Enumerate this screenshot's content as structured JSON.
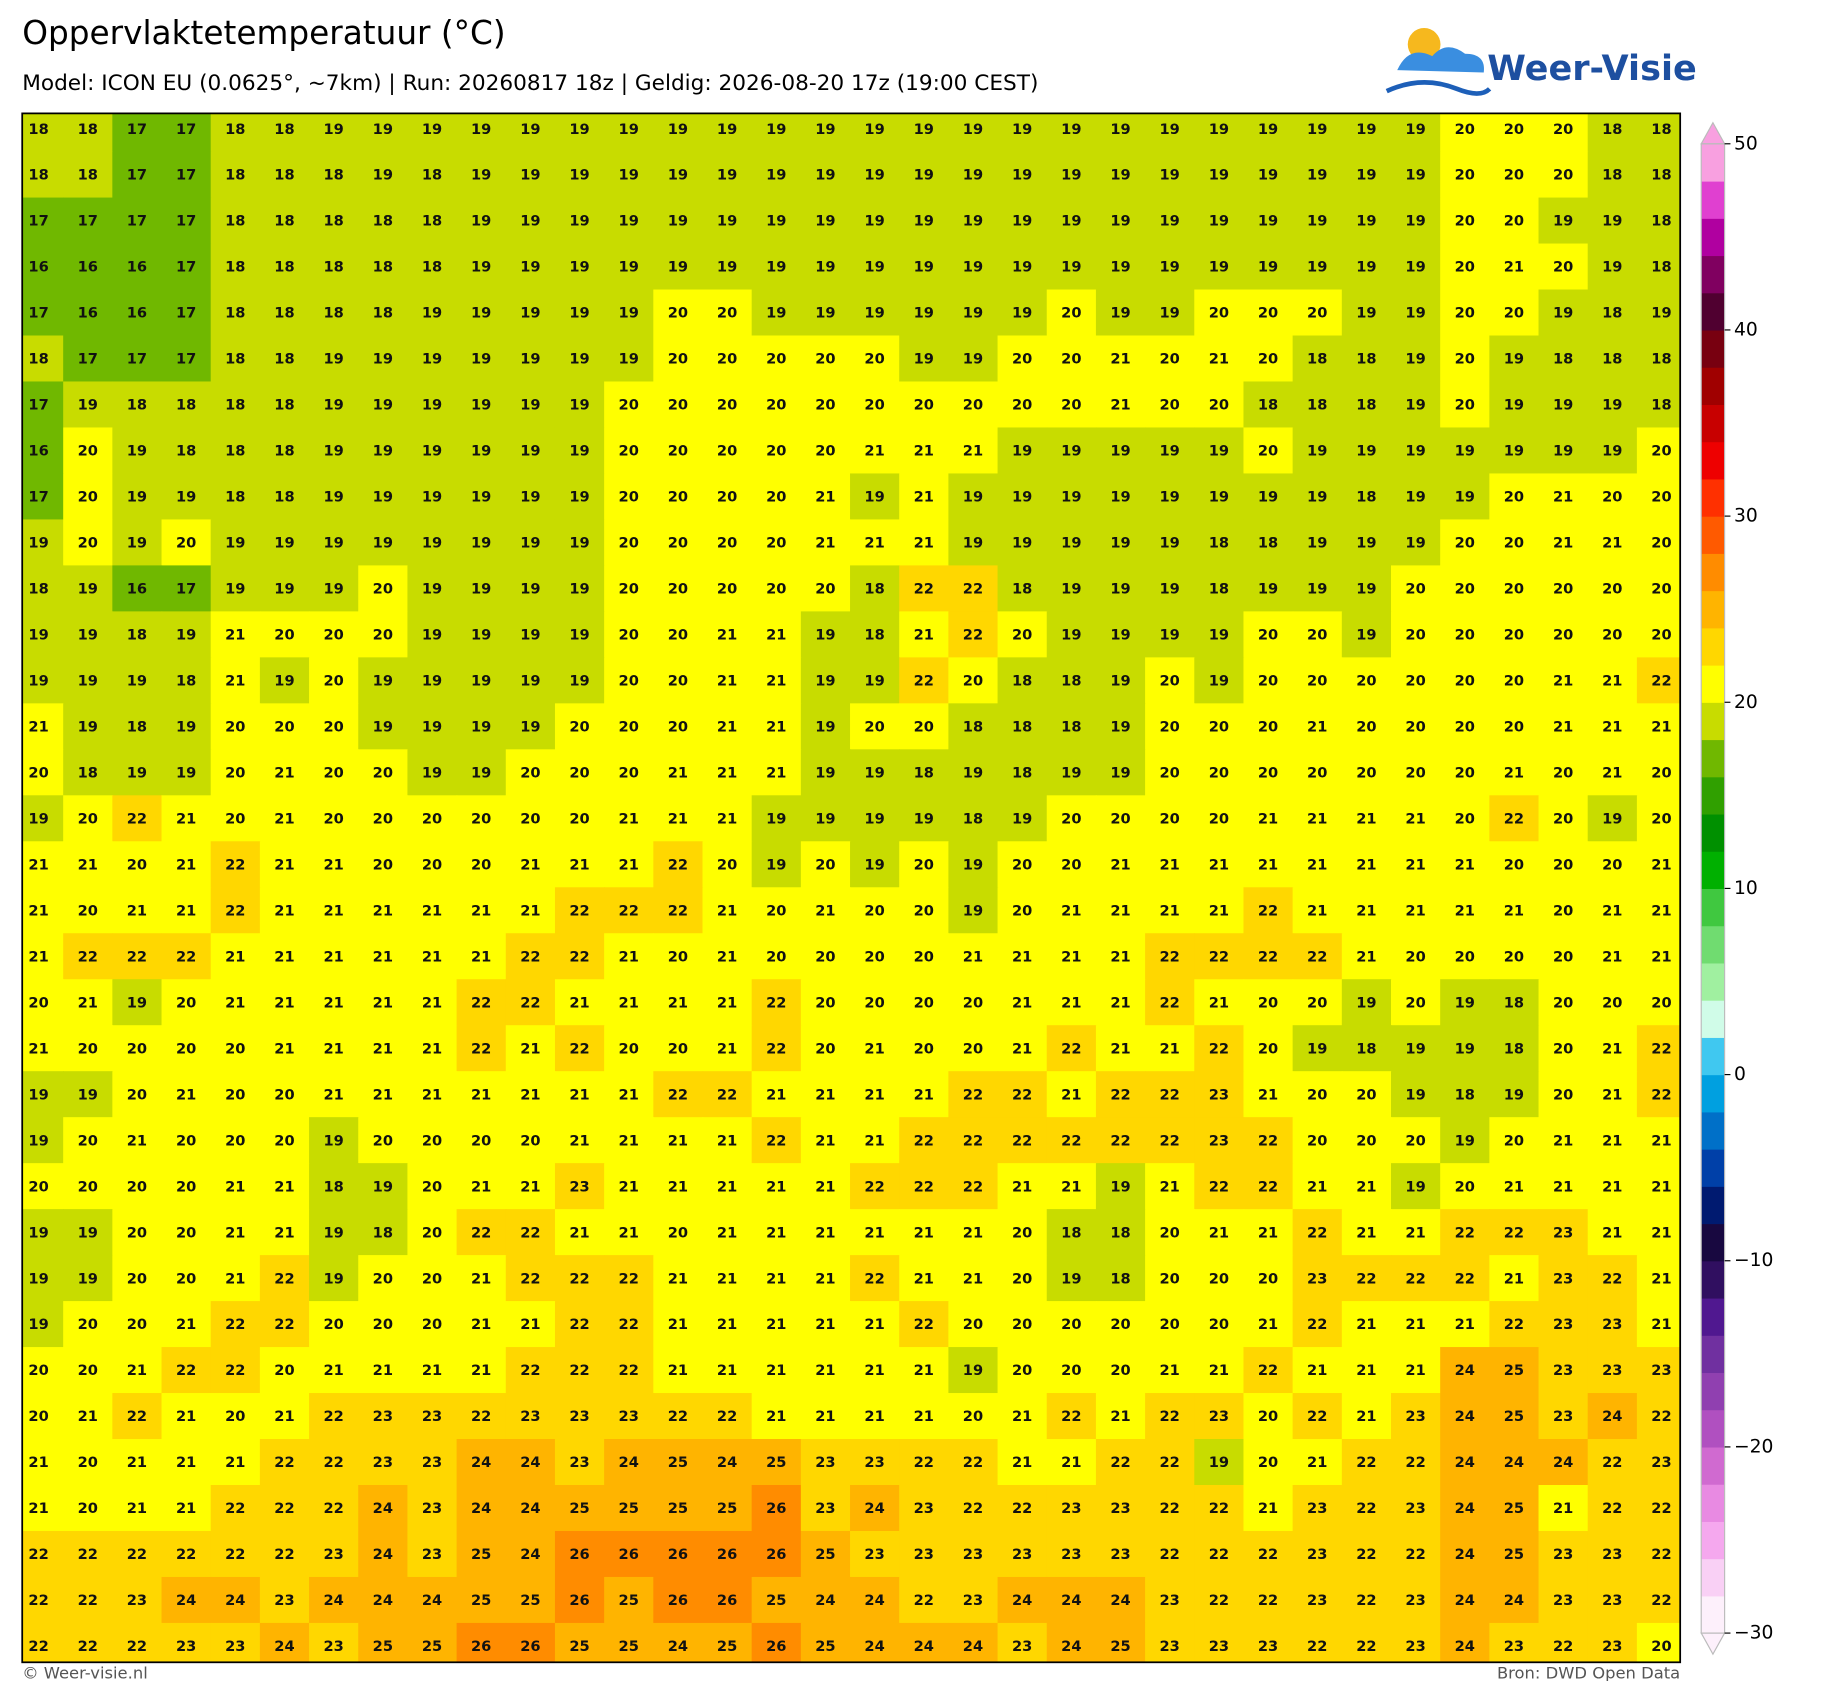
{
  "header": {
    "title": "Oppervlaktetemperatuur (°C)",
    "subtitle": "Model: ICON EU (0.0625°, ~7km)  |  Run: 20260817 18z  |  Geldig: 2026-08-20 17z (19:00 CEST)",
    "logo": "Weer-Visie"
  },
  "map": {
    "rows": [
      [
        18,
        18,
        17,
        17,
        18,
        18,
        19,
        19,
        19,
        19,
        19,
        19,
        19,
        19,
        19,
        19,
        19,
        19,
        19,
        19,
        19,
        19,
        19,
        19,
        19,
        19,
        19,
        19,
        19,
        20,
        20,
        20,
        18,
        18
      ],
      [
        18,
        18,
        17,
        17,
        18,
        18,
        18,
        19,
        18,
        19,
        19,
        19,
        19,
        19,
        19,
        19,
        19,
        19,
        19,
        19,
        19,
        19,
        19,
        19,
        19,
        19,
        19,
        19,
        19,
        20,
        20,
        20,
        18,
        18
      ],
      [
        17,
        17,
        17,
        17,
        18,
        18,
        18,
        18,
        18,
        19,
        19,
        19,
        19,
        19,
        19,
        19,
        19,
        19,
        19,
        19,
        19,
        19,
        19,
        19,
        19,
        19,
        19,
        19,
        19,
        20,
        20,
        19,
        19,
        18
      ],
      [
        16,
        16,
        16,
        17,
        18,
        18,
        18,
        18,
        18,
        19,
        19,
        19,
        19,
        19,
        19,
        19,
        19,
        19,
        19,
        19,
        19,
        19,
        19,
        19,
        19,
        19,
        19,
        19,
        19,
        20,
        21,
        20,
        19,
        18
      ],
      [
        17,
        16,
        16,
        17,
        18,
        18,
        18,
        18,
        19,
        19,
        19,
        19,
        19,
        20,
        20,
        19,
        19,
        19,
        19,
        19,
        19,
        20,
        19,
        19,
        20,
        20,
        20,
        19,
        19,
        20,
        20,
        19,
        18,
        19
      ],
      [
        18,
        17,
        17,
        17,
        18,
        18,
        19,
        19,
        19,
        19,
        19,
        19,
        19,
        20,
        20,
        20,
        20,
        20,
        19,
        19,
        20,
        20,
        21,
        20,
        21,
        20,
        18,
        18,
        19,
        20,
        19,
        18,
        18,
        18
      ],
      [
        17,
        19,
        18,
        18,
        18,
        18,
        19,
        19,
        19,
        19,
        19,
        19,
        20,
        20,
        20,
        20,
        20,
        20,
        20,
        20,
        20,
        20,
        21,
        20,
        20,
        18,
        18,
        18,
        19,
        20,
        19,
        19,
        19,
        18
      ],
      [
        16,
        20,
        19,
        18,
        18,
        18,
        19,
        19,
        19,
        19,
        19,
        19,
        20,
        20,
        20,
        20,
        20,
        21,
        21,
        21,
        19,
        19,
        19,
        19,
        19,
        20,
        19,
        19,
        19,
        19,
        19,
        19,
        19,
        20
      ],
      [
        17,
        20,
        19,
        19,
        18,
        18,
        19,
        19,
        19,
        19,
        19,
        19,
        20,
        20,
        20,
        20,
        21,
        19,
        21,
        19,
        19,
        19,
        19,
        19,
        19,
        19,
        19,
        18,
        19,
        19,
        20,
        21,
        20,
        20
      ],
      [
        19,
        20,
        19,
        20,
        19,
        19,
        19,
        19,
        19,
        19,
        19,
        19,
        20,
        20,
        20,
        20,
        21,
        21,
        21,
        19,
        19,
        19,
        19,
        19,
        18,
        18,
        19,
        19,
        19,
        20,
        20,
        21,
        21,
        20
      ],
      [
        18,
        19,
        16,
        17,
        19,
        19,
        19,
        20,
        19,
        19,
        19,
        19,
        20,
        20,
        20,
        20,
        20,
        18,
        22,
        22,
        18,
        19,
        19,
        19,
        18,
        19,
        19,
        19,
        20,
        20,
        20,
        20,
        20,
        20
      ],
      [
        19,
        19,
        18,
        19,
        21,
        20,
        20,
        20,
        19,
        19,
        19,
        19,
        20,
        20,
        21,
        21,
        19,
        18,
        21,
        22,
        20,
        19,
        19,
        19,
        19,
        20,
        20,
        19,
        20,
        20,
        20,
        20,
        20,
        20
      ],
      [
        19,
        19,
        19,
        18,
        21,
        19,
        20,
        19,
        19,
        19,
        19,
        19,
        20,
        20,
        21,
        21,
        19,
        19,
        22,
        20,
        18,
        18,
        19,
        20,
        19,
        20,
        20,
        20,
        20,
        20,
        20,
        21,
        21,
        22
      ],
      [
        21,
        19,
        18,
        19,
        20,
        20,
        20,
        19,
        19,
        19,
        19,
        20,
        20,
        20,
        21,
        21,
        19,
        20,
        20,
        18,
        18,
        18,
        19,
        20,
        20,
        20,
        21,
        20,
        20,
        20,
        20,
        21,
        21,
        21
      ],
      [
        20,
        18,
        19,
        19,
        20,
        21,
        20,
        20,
        19,
        19,
        20,
        20,
        20,
        21,
        21,
        21,
        19,
        19,
        18,
        19,
        18,
        19,
        19,
        20,
        20,
        20,
        20,
        20,
        20,
        20,
        21,
        20,
        21,
        20
      ],
      [
        19,
        20,
        22,
        21,
        20,
        21,
        20,
        20,
        20,
        20,
        20,
        20,
        21,
        21,
        21,
        19,
        19,
        19,
        19,
        18,
        19,
        20,
        20,
        20,
        20,
        21,
        21,
        21,
        21,
        20,
        22,
        20,
        19,
        20
      ],
      [
        21,
        21,
        20,
        21,
        22,
        21,
        21,
        20,
        20,
        20,
        21,
        21,
        21,
        22,
        20,
        19,
        20,
        19,
        20,
        19,
        20,
        20,
        21,
        21,
        21,
        21,
        21,
        21,
        21,
        21,
        20,
        20,
        20,
        21
      ],
      [
        21,
        20,
        21,
        21,
        22,
        21,
        21,
        21,
        21,
        21,
        21,
        22,
        22,
        22,
        21,
        20,
        21,
        20,
        20,
        19,
        20,
        21,
        21,
        21,
        21,
        22,
        21,
        21,
        21,
        21,
        21,
        20,
        21,
        21
      ],
      [
        21,
        22,
        22,
        22,
        21,
        21,
        21,
        21,
        21,
        21,
        22,
        22,
        21,
        20,
        21,
        20,
        20,
        20,
        20,
        21,
        21,
        21,
        21,
        22,
        22,
        22,
        22,
        21,
        20,
        20,
        20,
        20,
        21,
        21
      ],
      [
        20,
        21,
        19,
        20,
        21,
        21,
        21,
        21,
        21,
        22,
        22,
        21,
        21,
        21,
        21,
        22,
        20,
        20,
        20,
        20,
        21,
        21,
        21,
        22,
        21,
        20,
        20,
        19,
        20,
        19,
        18,
        20,
        20,
        20
      ],
      [
        21,
        20,
        20,
        20,
        20,
        21,
        21,
        21,
        21,
        22,
        21,
        22,
        20,
        20,
        21,
        22,
        20,
        21,
        20,
        20,
        21,
        22,
        21,
        21,
        22,
        20,
        19,
        18,
        19,
        19,
        18,
        20,
        21,
        22
      ],
      [
        19,
        19,
        20,
        21,
        20,
        20,
        21,
        21,
        21,
        21,
        21,
        21,
        21,
        22,
        22,
        21,
        21,
        21,
        21,
        22,
        22,
        21,
        22,
        22,
        23,
        21,
        20,
        20,
        19,
        18,
        19,
        20,
        21,
        22
      ],
      [
        19,
        20,
        21,
        20,
        20,
        20,
        19,
        20,
        20,
        20,
        20,
        21,
        21,
        21,
        21,
        22,
        21,
        21,
        22,
        22,
        22,
        22,
        22,
        22,
        23,
        22,
        20,
        20,
        20,
        19,
        20,
        21,
        21,
        21
      ],
      [
        20,
        20,
        20,
        20,
        21,
        21,
        18,
        19,
        20,
        21,
        21,
        23,
        21,
        21,
        21,
        21,
        21,
        22,
        22,
        22,
        21,
        21,
        19,
        21,
        22,
        22,
        21,
        21,
        19,
        20,
        21,
        21,
        21,
        21
      ],
      [
        19,
        19,
        20,
        20,
        21,
        21,
        19,
        18,
        20,
        22,
        22,
        21,
        21,
        20,
        21,
        21,
        21,
        21,
        21,
        21,
        20,
        18,
        18,
        20,
        21,
        21,
        22,
        21,
        21,
        22,
        22,
        23,
        21,
        21
      ],
      [
        19,
        19,
        20,
        20,
        21,
        22,
        19,
        20,
        20,
        21,
        22,
        22,
        22,
        21,
        21,
        21,
        21,
        22,
        21,
        21,
        20,
        19,
        18,
        20,
        20,
        20,
        23,
        22,
        22,
        22,
        21,
        23,
        22,
        21
      ],
      [
        19,
        20,
        20,
        21,
        22,
        22,
        20,
        20,
        20,
        21,
        21,
        22,
        22,
        21,
        21,
        21,
        21,
        21,
        22,
        20,
        20,
        20,
        20,
        20,
        20,
        21,
        22,
        21,
        21,
        21,
        22,
        23,
        23,
        21
      ],
      [
        20,
        20,
        21,
        22,
        22,
        20,
        21,
        21,
        21,
        21,
        22,
        22,
        22,
        21,
        21,
        21,
        21,
        21,
        21,
        19,
        20,
        20,
        20,
        21,
        21,
        22,
        21,
        21,
        21,
        24,
        25,
        23,
        23,
        23
      ],
      [
        20,
        21,
        22,
        21,
        20,
        21,
        22,
        23,
        23,
        22,
        23,
        23,
        23,
        22,
        22,
        21,
        21,
        21,
        21,
        20,
        21,
        22,
        21,
        22,
        23,
        20,
        22,
        21,
        23,
        24,
        25,
        23,
        24,
        22
      ],
      [
        21,
        20,
        21,
        21,
        21,
        22,
        22,
        23,
        23,
        24,
        24,
        23,
        24,
        25,
        24,
        25,
        23,
        23,
        22,
        22,
        21,
        21,
        22,
        22,
        19,
        20,
        21,
        22,
        22,
        24,
        24,
        24,
        22,
        23
      ],
      [
        21,
        20,
        21,
        21,
        22,
        22,
        22,
        24,
        23,
        24,
        24,
        25,
        25,
        25,
        25,
        26,
        23,
        24,
        23,
        22,
        22,
        23,
        23,
        22,
        22,
        21,
        23,
        22,
        23,
        24,
        25,
        21,
        22,
        22
      ],
      [
        22,
        22,
        22,
        22,
        22,
        22,
        23,
        24,
        23,
        25,
        24,
        26,
        26,
        26,
        26,
        26,
        25,
        23,
        23,
        23,
        23,
        23,
        23,
        22,
        22,
        22,
        23,
        22,
        22,
        24,
        25,
        23,
        23,
        22
      ],
      [
        22,
        22,
        23,
        24,
        24,
        23,
        24,
        24,
        24,
        25,
        25,
        26,
        25,
        26,
        26,
        25,
        24,
        24,
        22,
        23,
        24,
        24,
        24,
        23,
        22,
        22,
        23,
        22,
        23,
        24,
        24,
        23,
        23,
        22
      ],
      [
        22,
        22,
        22,
        23,
        23,
        24,
        23,
        25,
        25,
        26,
        26,
        25,
        25,
        24,
        25,
        26,
        25,
        24,
        24,
        24,
        23,
        24,
        25,
        23,
        23,
        23,
        22,
        22,
        23,
        24,
        23,
        22,
        23,
        20
      ]
    ]
  },
  "colorbar": {
    "range": [
      -30,
      50
    ],
    "ticks": [
      50,
      40,
      30,
      20,
      10,
      0,
      {
        "value": -10,
        "label": "−10"
      },
      {
        "value": -20,
        "label": "−20"
      },
      {
        "value": -30,
        "label": "−30"
      }
    ],
    "colors": [
      "#fdf0fb",
      "#f9d0f5",
      "#f5a8ee",
      "#e88ae2",
      "#d06ad0",
      "#b050c0",
      "#9040b0",
      "#7030a0",
      "#501890",
      "#300f60",
      "#180840",
      "#001a70",
      "#0040a8",
      "#0070c8",
      "#00a0e0",
      "#40c8f0",
      "#d0fce8",
      "#a0f0a0",
      "#70dc70",
      "#40c840",
      "#00b000",
      "#009000",
      "#30a000",
      "#70b800",
      "#c8dc00",
      "#ffff00",
      "#ffd700",
      "#ffb400",
      "#ff8c00",
      "#ff5a00",
      "#ff3000",
      "#ee0000",
      "#c80000",
      "#a00000",
      "#780010",
      "#500030",
      "#800060",
      "#b000a0",
      "#e040d0",
      "#f8a0e0"
    ]
  },
  "footer": {
    "left": "© Weer-visie.nl",
    "right": "Bron: DWD Open Data"
  }
}
